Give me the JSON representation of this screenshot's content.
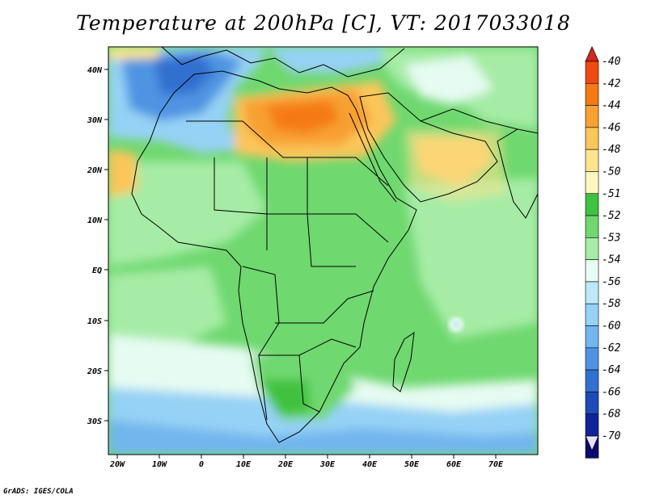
{
  "title": "Temperature at 200hPa [C], VT: 2017033018",
  "credit": "GrADS: IGES/COLA",
  "lat_ticks": [
    "40N",
    "30N",
    "20N",
    "10N",
    "EQ",
    "10S",
    "20S",
    "30S"
  ],
  "lon_ticks": [
    "20W",
    "10W",
    "0",
    "10E",
    "20E",
    "30E",
    "40E",
    "50E",
    "60E",
    "70E"
  ],
  "colorbar": {
    "levels": [
      "-40",
      "-42",
      "-44",
      "-46",
      "-48",
      "-50",
      "-51",
      "-52",
      "-53",
      "-54",
      "-56",
      "-58",
      "-60",
      "-62",
      "-64",
      "-66",
      "-68",
      "-70"
    ],
    "colors": [
      "#d42a1a",
      "#f04a10",
      "#f57a12",
      "#f8a030",
      "#fbc65a",
      "#fde48e",
      "#fff6c0",
      "#3fc23f",
      "#6fd86f",
      "#a6eca6",
      "#e6fbf2",
      "#bce8f8",
      "#96d2f5",
      "#72b6ee",
      "#4f94e2",
      "#3270d0",
      "#1d4cb8",
      "#10249a",
      "#0a0a70"
    ],
    "arrow_bottom_color": "#e8e0ff"
  },
  "map_colors": {
    "water_cold": "#96d2f5",
    "very_cold": "#4f94e2",
    "mid": "#6fd86f",
    "light": "#a6eca6",
    "warm": "#fbc65a",
    "hot": "#f57a12",
    "pale": "#e6fbf2"
  }
}
